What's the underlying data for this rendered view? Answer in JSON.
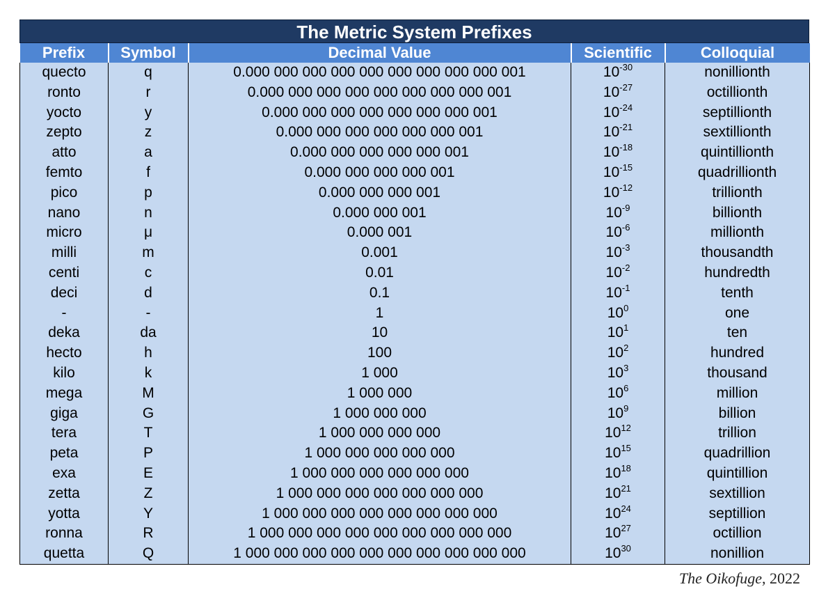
{
  "title": "The Metric System Prefixes",
  "headers": {
    "prefix": "Prefix",
    "symbol": "Symbol",
    "decimal": "Decimal Value",
    "scientific": "Scientific",
    "colloquial": "Colloquial"
  },
  "rows": [
    {
      "prefix": "quecto",
      "symbol": "q",
      "decimal": "0.000 000 000 000 000 000 000 000 000 001",
      "base": "10",
      "exp": "-30",
      "colloquial": "nonillionth"
    },
    {
      "prefix": "ronto",
      "symbol": "r",
      "decimal": "0.000 000 000 000 000 000 000 000 001",
      "base": "10",
      "exp": "-27",
      "colloquial": "octillionth"
    },
    {
      "prefix": "yocto",
      "symbol": "y",
      "decimal": "0.000 000 000 000 000 000 000 001",
      "base": "10",
      "exp": "-24",
      "colloquial": "septillionth"
    },
    {
      "prefix": "zepto",
      "symbol": "z",
      "decimal": "0.000 000 000 000 000 000 001",
      "base": "10",
      "exp": "-21",
      "colloquial": "sextillionth"
    },
    {
      "prefix": "atto",
      "symbol": "a",
      "decimal": "0.000 000 000 000 000 001",
      "base": "10",
      "exp": "-18",
      "colloquial": "quintillionth"
    },
    {
      "prefix": "femto",
      "symbol": "f",
      "decimal": "0.000 000 000 000 001",
      "base": "10",
      "exp": "-15",
      "colloquial": "quadrillionth"
    },
    {
      "prefix": "pico",
      "symbol": "p",
      "decimal": "0.000 000 000 001",
      "base": "10",
      "exp": "-12",
      "colloquial": "trillionth"
    },
    {
      "prefix": "nano",
      "symbol": "n",
      "decimal": "0.000 000 001",
      "base": "10",
      "exp": "-9",
      "colloquial": "billionth"
    },
    {
      "prefix": "micro",
      "symbol": "μ",
      "decimal": "0.000 001",
      "base": "10",
      "exp": "-6",
      "colloquial": "millionth"
    },
    {
      "prefix": "milli",
      "symbol": "m",
      "decimal": "0.001",
      "base": "10",
      "exp": "-3",
      "colloquial": "thousandth"
    },
    {
      "prefix": "centi",
      "symbol": "c",
      "decimal": "0.01",
      "base": "10",
      "exp": "-2",
      "colloquial": "hundredth"
    },
    {
      "prefix": "deci",
      "symbol": "d",
      "decimal": "0.1",
      "base": "10",
      "exp": "-1",
      "colloquial": "tenth"
    },
    {
      "prefix": "-",
      "symbol": "-",
      "decimal": "1",
      "base": "10",
      "exp": "0",
      "colloquial": "one"
    },
    {
      "prefix": "deka",
      "symbol": "da",
      "decimal": "10",
      "base": "10",
      "exp": "1",
      "colloquial": "ten"
    },
    {
      "prefix": "hecto",
      "symbol": "h",
      "decimal": "100",
      "base": "10",
      "exp": "2",
      "colloquial": "hundred"
    },
    {
      "prefix": "kilo",
      "symbol": "k",
      "decimal": "1 000",
      "base": "10",
      "exp": "3",
      "colloquial": "thousand"
    },
    {
      "prefix": "mega",
      "symbol": "M",
      "decimal": "1 000 000",
      "base": "10",
      "exp": "6",
      "colloquial": "million"
    },
    {
      "prefix": "giga",
      "symbol": "G",
      "decimal": "1 000 000 000",
      "base": "10",
      "exp": "9",
      "colloquial": "billion"
    },
    {
      "prefix": "tera",
      "symbol": "T",
      "decimal": "1 000 000 000 000",
      "base": "10",
      "exp": "12",
      "colloquial": "trillion"
    },
    {
      "prefix": "peta",
      "symbol": "P",
      "decimal": "1 000 000 000 000 000",
      "base": "10",
      "exp": "15",
      "colloquial": "quadrillion"
    },
    {
      "prefix": "exa",
      "symbol": "E",
      "decimal": "1 000 000 000 000 000 000",
      "base": "10",
      "exp": "18",
      "colloquial": "quintillion"
    },
    {
      "prefix": "zetta",
      "symbol": "Z",
      "decimal": "1 000 000 000 000 000 000 000",
      "base": "10",
      "exp": "21",
      "colloquial": "sextillion"
    },
    {
      "prefix": "yotta",
      "symbol": "Y",
      "decimal": "1 000 000 000 000 000 000 000 000",
      "base": "10",
      "exp": "24",
      "colloquial": "septillion"
    },
    {
      "prefix": "ronna",
      "symbol": "R",
      "decimal": "1 000 000 000 000 000 000 000 000 000",
      "base": "10",
      "exp": "27",
      "colloquial": "octillion"
    },
    {
      "prefix": "quetta",
      "symbol": "Q",
      "decimal": "1 000 000 000 000 000 000 000 000 000 000",
      "base": "10",
      "exp": "30",
      "colloquial": "nonillion"
    }
  ],
  "credit": {
    "name": "The Oikofuge",
    "year": ", 2022"
  },
  "colors": {
    "title_bg": "#1f3a63",
    "header_bg": "#4f86d3",
    "cell_bg": "#c5d8f0"
  }
}
